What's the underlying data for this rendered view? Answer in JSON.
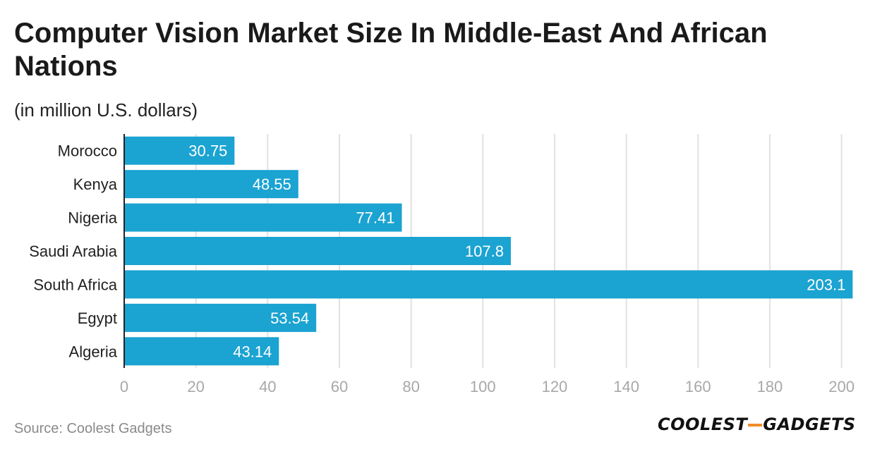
{
  "header": {
    "title": "Computer Vision Market Size In Middle-East And African Nations",
    "subtitle": "(in million U.S. dollars)"
  },
  "footer": {
    "source": "Source: Coolest Gadgets",
    "logo_part1": "COOLEST",
    "logo_part2": "GADGETS",
    "logo_dash_color": "#f28c28"
  },
  "chart_data": {
    "type": "bar",
    "orientation": "horizontal",
    "title": "Computer Vision Market Size In Middle-East And African Nations",
    "subtitle": "(in million U.S. dollars)",
    "categories": [
      "Morocco",
      "Kenya",
      "Nigeria",
      "Saudi Arabia",
      "South Africa",
      "Egypt",
      "Algeria"
    ],
    "values": [
      30.75,
      48.55,
      77.41,
      107.8,
      203.1,
      53.54,
      43.14
    ],
    "value_labels": [
      "30.75",
      "48.55",
      "77.41",
      "107.8",
      "203.1",
      "53.54",
      "43.14"
    ],
    "xlim": [
      0,
      205
    ],
    "xticks": [
      0,
      20,
      40,
      60,
      80,
      100,
      120,
      140,
      160,
      180,
      200
    ],
    "xlabel": "",
    "ylabel": "",
    "grid": true,
    "legend": "none",
    "bar_color": "#1ba3d1"
  }
}
